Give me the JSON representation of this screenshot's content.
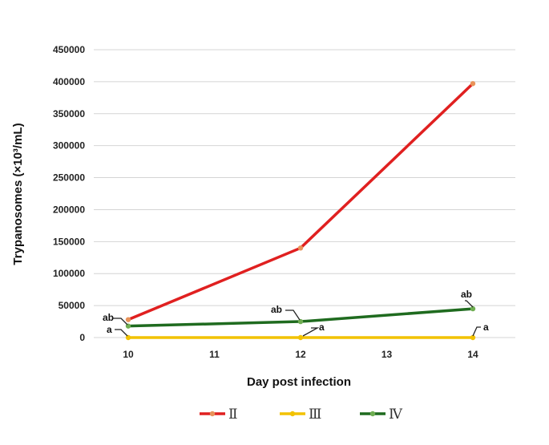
{
  "chart_data": {
    "type": "line",
    "title": "",
    "xlabel": "Day post infection",
    "ylabel": "Trypanosomes (×10³/mL)",
    "x_ticks": [
      "10",
      "11",
      "12",
      "13",
      "14"
    ],
    "xlim": [
      10,
      14
    ],
    "y_ticks": [
      "0",
      "50000",
      "100000",
      "150000",
      "200000",
      "250000",
      "300000",
      "350000",
      "400000",
      "450000"
    ],
    "ylim": [
      0,
      450000
    ],
    "grid": "horizontal",
    "legend_position": "bottom",
    "series": [
      {
        "name": "Ⅱ",
        "color": "#e02020",
        "marker_color": "#e8935a",
        "x": [
          10,
          12,
          14
        ],
        "y": [
          28000,
          140000,
          397000
        ]
      },
      {
        "name": "Ⅲ",
        "color": "#f2c200",
        "marker_color": "#f2c200",
        "x": [
          10,
          12,
          14
        ],
        "y": [
          0,
          0,
          0
        ]
      },
      {
        "name": "Ⅳ",
        "color": "#1f6b1f",
        "marker_color": "#6fae52",
        "x": [
          10,
          12,
          14
        ],
        "y": [
          18000,
          25000,
          45000
        ]
      }
    ],
    "annotations": [
      {
        "text": "ab",
        "x": 10,
        "y": 18000
      },
      {
        "text": "a",
        "x": 10,
        "y": 0
      },
      {
        "text": "ab",
        "x": 12,
        "y": 25000
      },
      {
        "text": "a",
        "x": 12,
        "y": 0
      },
      {
        "text": "ab",
        "x": 14,
        "y": 45000
      },
      {
        "text": "a",
        "x": 14,
        "y": 0
      }
    ]
  }
}
